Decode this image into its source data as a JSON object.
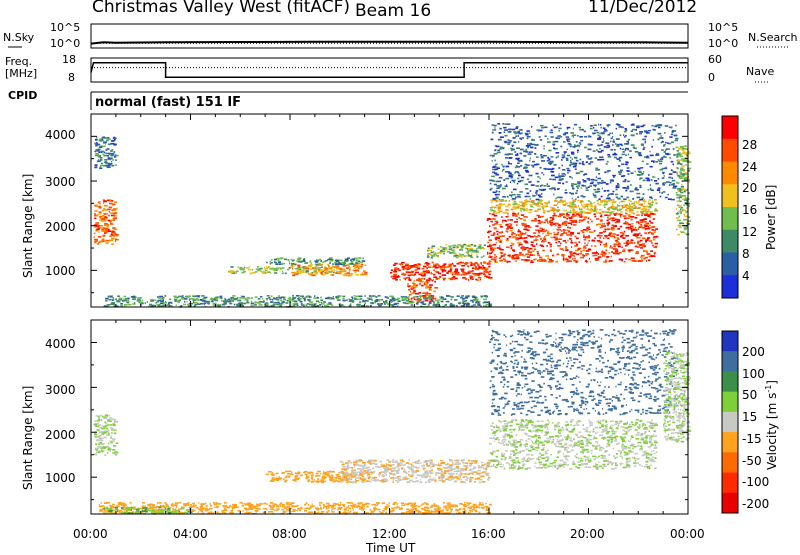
{
  "header": {
    "station": "Christmas Valley West (fitACF)",
    "beam": "Beam 16",
    "date": "11/Dec/2012"
  },
  "noise_panel": {
    "left_label": "N.Sky",
    "left_ticks": [
      "10^5",
      "10^0"
    ],
    "right_label": "N.Search",
    "right_ticks": [
      "10^5",
      "10^0"
    ]
  },
  "freq_panel": {
    "left_label_line1": "Freq.",
    "left_label_line2": "[MHz]",
    "left_ticks": [
      "18",
      "8"
    ],
    "right_label": "Nave",
    "right_ticks": [
      "60",
      "0"
    ]
  },
  "cpid": {
    "label": "CPID",
    "text": "normal (fast) 151 IF"
  },
  "axes": {
    "ylabel": "Slant Range [km]",
    "xlabel": "Time UT",
    "x_ticks": [
      "00:00",
      "04:00",
      "08:00",
      "12:00",
      "16:00",
      "20:00",
      "00:00"
    ],
    "y_ticks": [
      "1000",
      "2000",
      "3000",
      "4000"
    ]
  },
  "power_colorbar": {
    "label": "Power [dB]",
    "ticks": [
      "4",
      "8",
      "12",
      "16",
      "20",
      "24",
      "28"
    ],
    "colors": [
      "#1c2fd8",
      "#2c5ea6",
      "#3e8a66",
      "#71bd4d",
      "#f0c020",
      "#ff8a00",
      "#ff4a00",
      "#ff0000"
    ]
  },
  "velocity_colorbar": {
    "label_main": "Velocity [m s",
    "label_sup": "-1",
    "label_end": "]",
    "ticks": [
      "200",
      "100",
      "50",
      "15",
      "-15",
      "-50",
      "-100",
      "-200"
    ],
    "colors": [
      "#2035c0",
      "#3f6e9e",
      "#3b8f4a",
      "#7fcf3a",
      "#c8c8c4",
      "#ffa21e",
      "#ff6a00",
      "#ff2a00",
      "#e80000"
    ]
  },
  "chart_data": [
    {
      "type": "line",
      "title": "",
      "xlabel": "",
      "ylabel": "N.Sky",
      "x_range_hours": [
        0,
        24
      ],
      "ylim_log10": [
        0,
        5
      ],
      "series": [
        {
          "x": [
            0,
            0.5,
            1,
            3,
            6,
            9,
            12,
            15,
            16,
            18,
            20,
            22,
            24
          ],
          "y_log10": [
            0.9,
            1.2,
            1.1,
            1.2,
            1.25,
            1.3,
            1.3,
            1.3,
            1.3,
            1.25,
            1.2,
            1.2,
            1.1
          ]
        }
      ]
    },
    {
      "type": "line",
      "title": "",
      "xlabel": "",
      "ylabel": "Freq. [MHz]",
      "x_range_hours": [
        0,
        24
      ],
      "ylim": [
        8,
        18
      ],
      "series": [
        {
          "name": "Freq.",
          "x": [
            0,
            0.1,
            3.0,
            3.0,
            15.0,
            15.0,
            24
          ],
          "y": [
            12,
            16,
            16,
            10,
            10,
            16,
            16
          ]
        },
        {
          "name": "Nave",
          "x": [
            0,
            24
          ],
          "y": [
            14,
            14
          ]
        }
      ]
    },
    {
      "type": "heatmap",
      "title": "",
      "xlabel": "Time UT",
      "ylabel": "Slant Range [km]",
      "x_range_hours": [
        0,
        24
      ],
      "ylim": [
        180,
        4500
      ],
      "colorbar": "Power [dB]",
      "regions": [
        {
          "t": [
            0.1,
            1.0
          ],
          "r": [
            1600,
            2600
          ],
          "power_db": 24
        },
        {
          "t": [
            0.1,
            1.0
          ],
          "r": [
            3300,
            4000
          ],
          "power_db": 8
        },
        {
          "t": [
            5.5,
            10.0
          ],
          "r": [
            950,
            1100
          ],
          "power_db": 14
        },
        {
          "t": [
            8.0,
            11.0
          ],
          "r": [
            900,
            1150
          ],
          "power_db": 22
        },
        {
          "t": [
            7.0,
            11.0
          ],
          "r": [
            1150,
            1300
          ],
          "power_db": 10
        },
        {
          "t": [
            12.0,
            16.0
          ],
          "r": [
            800,
            1200
          ],
          "power_db": 28
        },
        {
          "t": [
            12.7,
            13.8
          ],
          "r": [
            300,
            800
          ],
          "power_db": 26
        },
        {
          "t": [
            13.5,
            15.8
          ],
          "r": [
            1300,
            1600
          ],
          "power_db": 14
        },
        {
          "t": [
            0.5,
            16.0
          ],
          "r": [
            200,
            450
          ],
          "power_db": 10
        },
        {
          "t": [
            15.9,
            22.7
          ],
          "r": [
            1200,
            2300
          ],
          "power_db": 28
        },
        {
          "t": [
            16.0,
            22.7
          ],
          "r": [
            2300,
            2600
          ],
          "power_db": 18
        },
        {
          "t": [
            16.0,
            23.5
          ],
          "r": [
            2600,
            4300
          ],
          "power_db": 6
        },
        {
          "t": [
            23.5,
            24.0
          ],
          "r": [
            1800,
            3800
          ],
          "power_db": 14
        }
      ]
    },
    {
      "type": "heatmap",
      "title": "",
      "xlabel": "Time UT",
      "ylabel": "Slant Range [km]",
      "x_range_hours": [
        0,
        24
      ],
      "ylim": [
        180,
        4500
      ],
      "colorbar": "Velocity [m s-1]",
      "regions": [
        {
          "t": [
            0.1,
            1.0
          ],
          "r": [
            1500,
            2400
          ],
          "velocity": 0
        },
        {
          "t": [
            7.0,
            11.0
          ],
          "r": [
            900,
            1150
          ],
          "velocity": -40
        },
        {
          "t": [
            10.0,
            16.0
          ],
          "r": [
            900,
            1400
          ],
          "velocity": -30
        },
        {
          "t": [
            0.3,
            16.0
          ],
          "r": [
            200,
            450
          ],
          "velocity": -40
        },
        {
          "t": [
            0.5,
            4.0
          ],
          "r": [
            200,
            350
          ],
          "velocity": 30
        },
        {
          "t": [
            16.0,
            22.7
          ],
          "r": [
            1200,
            2300
          ],
          "velocity": 0
        },
        {
          "t": [
            16.0,
            23.5
          ],
          "r": [
            2400,
            4300
          ],
          "velocity": 80
        },
        {
          "t": [
            23.0,
            24.0
          ],
          "r": [
            1800,
            3800
          ],
          "velocity": 0
        }
      ]
    }
  ]
}
